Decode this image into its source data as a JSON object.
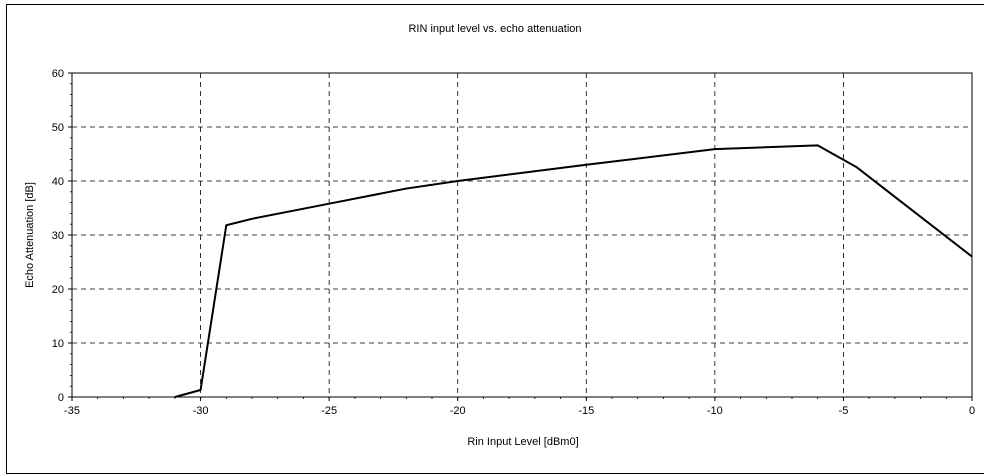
{
  "chart_data": {
    "type": "line",
    "title": "RIN input level vs. echo attenuation",
    "xlabel": "Rin Input Level [dBm0]",
    "ylabel": "Echo Attenuation [dB]",
    "xlim": [
      -35,
      0
    ],
    "ylim": [
      0,
      60
    ],
    "x_ticks": [
      -35,
      -30,
      -25,
      -20,
      -15,
      -10,
      -5,
      0
    ],
    "y_ticks": [
      0,
      10,
      20,
      30,
      40,
      50,
      60
    ],
    "x_tick_labels": [
      "-35",
      "-30",
      "-25",
      "-20",
      "-15",
      "-10",
      "-5",
      "0"
    ],
    "y_tick_labels": [
      "0",
      "10",
      "20",
      "30",
      "40",
      "50",
      "60"
    ],
    "grid": true,
    "line_color": "#000000",
    "series": [
      {
        "x": [
          -31,
          -30,
          -29,
          -28,
          -25,
          -22,
          -20,
          -15,
          -10,
          -6,
          -4.5,
          0
        ],
        "y": [
          0,
          1.3,
          31.8,
          33,
          35.8,
          38.6,
          40,
          43,
          45.9,
          46.6,
          42.6,
          26
        ]
      }
    ]
  }
}
